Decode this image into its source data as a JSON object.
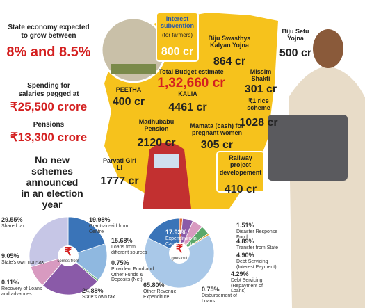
{
  "left_panel": {
    "economy_label": "State economy expected to grow between",
    "economy_value": "8% and 8.5%",
    "salaries_label": "Spending for salaries pegged at",
    "salaries_value": "₹25,500 crore",
    "pensions_label": "Pensions",
    "pensions_value": "₹13,300 crore",
    "note": "No new schemes announced in an election year"
  },
  "map": {
    "items": [
      {
        "label": "Interest subvention",
        "sublabel": "(for farmers)",
        "value": "800 cr"
      },
      {
        "label": "Biju Swasthya Kalyan Yojna",
        "value": "864 cr"
      },
      {
        "label": "Biju Setu Yojna",
        "value": "500 cr"
      },
      {
        "label": "Total Budget estimate",
        "value": "1,32,660 cr"
      },
      {
        "label": "Missim Shakti",
        "value": "301 cr"
      },
      {
        "label": "PEETHA",
        "value": "400 cr"
      },
      {
        "label": "KALIA",
        "value": "4461 cr"
      },
      {
        "label": "₹1 rice scheme",
        "value": "1028 cr"
      },
      {
        "label": "Madhubabu Pension",
        "value": "2120 cr"
      },
      {
        "label": "Mamata (cash) for pregnant women",
        "value": "305 cr"
      },
      {
        "label": "Parvati Giri LI",
        "value": "1777 cr"
      },
      {
        "label": "Railway project developement",
        "value": "410 cr"
      }
    ]
  },
  "charts": [
    {
      "type": "pie",
      "center_symbol": "₹",
      "center_text": "comes from",
      "slices": [
        {
          "name": "Grants-in-aid from Centre",
          "value": 19.98,
          "value_label": "19.98%",
          "color": "#3a74b8"
        },
        {
          "name": "Loans from different sources",
          "value": 15.68,
          "value_label": "15.68%",
          "color": "#8fb8e0"
        },
        {
          "name": "Provident Fund and Other Funds & Deposits (Net)",
          "value": 0.75,
          "value_label": "0.75%",
          "color": "#5aa86a"
        },
        {
          "name": "State's own tax",
          "value": 24.88,
          "value_label": "24.88%",
          "color": "#8a5aa8"
        },
        {
          "name": "Recovery of Loans and advances",
          "value": 0.11,
          "value_label": "0.11%",
          "color": "#e0a030"
        },
        {
          "name": "State's own non-tax",
          "value": 9.05,
          "value_label": "9.05%",
          "color": "#d89ac0"
        },
        {
          "name": "Shared tax",
          "value": 29.55,
          "value_label": "29.55%",
          "color": "#c6c6e6"
        }
      ]
    },
    {
      "type": "pie",
      "center_symbol": "₹",
      "center_text": "goes out",
      "slices": [
        {
          "name": "Disaster Response Fund",
          "value": 1.51,
          "value_label": "1.51%",
          "color": "#e07040"
        },
        {
          "name": "Transfer from State",
          "value": 4.89,
          "value_label": "4.89%",
          "color": "#8a5aa8"
        },
        {
          "name": "Debt Servicing (Interest Payment)",
          "value": 4.9,
          "value_label": "4.90%",
          "color": "#d89ac0"
        },
        {
          "name": "Debt Servicing (Repayment of Loans)",
          "value": 4.29,
          "value_label": "4.29%",
          "color": "#5aa86a"
        },
        {
          "name": "Disbursement of Loans",
          "value": 0.75,
          "value_label": "0.75%",
          "color": "#e0a030"
        },
        {
          "name": "Other Revenue Expenditure",
          "value": 65.8,
          "value_label": "65.80%",
          "color": "#a9c8e8"
        },
        {
          "name": "Expenditure in Capital Sector",
          "value": 17.93,
          "value_label": "17.93%",
          "color": "#3a74b8"
        }
      ]
    }
  ]
}
